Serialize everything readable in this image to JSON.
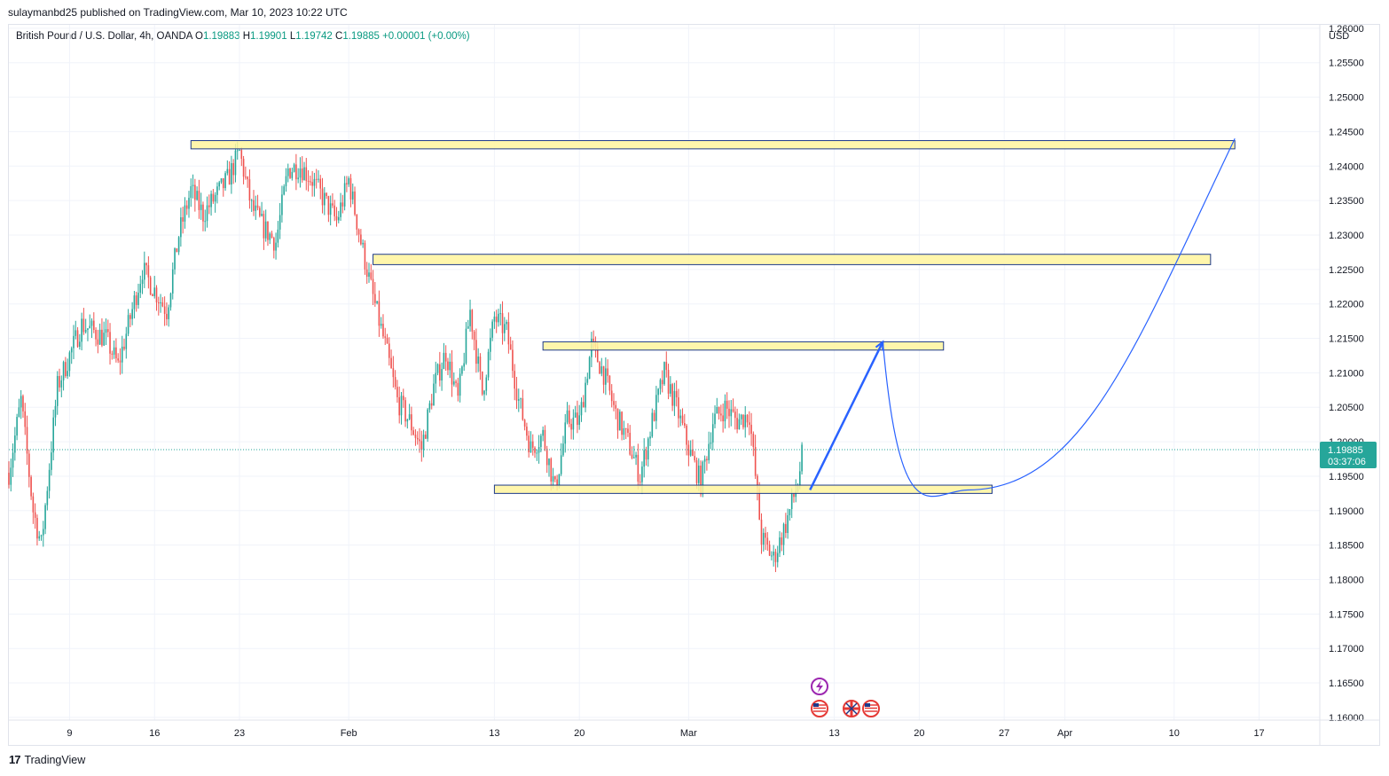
{
  "header": {
    "published": "sulaymanbd25 published on TradingView.com, Mar 10, 2023 10:22 UTC"
  },
  "legend": {
    "symbol": "British Pound / U.S. Dollar, 4h, OANDA",
    "o_label": "O",
    "o": "1.19883",
    "h_label": "H",
    "h": "1.19901",
    "l_label": "L",
    "l": "1.19742",
    "c_label": "C",
    "c": "1.19885",
    "change": "+0.00001 (+0.00%)"
  },
  "footer": {
    "brand": "TradingView",
    "logo": "17"
  },
  "colors": {
    "up": "#26a69a",
    "down": "#ef5350",
    "zone_fill": "#fff59d",
    "zone_border": "#1e3a8a",
    "projection": "#2962ff",
    "price_label": "#26a69a",
    "grid": "#f0f3fa"
  },
  "icons": [
    "lightning-event-icon",
    "us-flag-icon",
    "uk-flag-icon",
    "us-flag-icon"
  ],
  "chart_data": {
    "type": "candlestick",
    "currency_label": "USD",
    "ylim": [
      1.1596,
      1.2605
    ],
    "y_ticks": [
      "1.26000",
      "1.25500",
      "1.25000",
      "1.24500",
      "1.24000",
      "1.23500",
      "1.23000",
      "1.22500",
      "1.22000",
      "1.21500",
      "1.21000",
      "1.20500",
      "1.20000",
      "1.19500",
      "1.19000",
      "1.18500",
      "1.18000",
      "1.17500",
      "1.17000",
      "1.16500",
      "1.16000"
    ],
    "x_ticks": [
      {
        "label": "9",
        "date": "2023-01-09"
      },
      {
        "label": "16",
        "date": "2023-01-16"
      },
      {
        "label": "23",
        "date": "2023-01-23"
      },
      {
        "label": "Feb",
        "date": "2023-02-01"
      },
      {
        "label": "13",
        "date": "2023-02-13"
      },
      {
        "label": "20",
        "date": "2023-02-20"
      },
      {
        "label": "Mar",
        "date": "2023-03-01"
      },
      {
        "label": "13",
        "date": "2023-03-13"
      },
      {
        "label": "20",
        "date": "2023-03-20"
      },
      {
        "label": "27",
        "date": "2023-03-27"
      },
      {
        "label": "Apr",
        "date": "2023-04-01"
      },
      {
        "label": "10",
        "date": "2023-04-10"
      },
      {
        "label": "17",
        "date": "2023-04-17"
      }
    ],
    "x_range": [
      "2023-01-04",
      "2023-04-22"
    ],
    "close_path": [
      {
        "date": "2023-01-04",
        "close": 1.1955
      },
      {
        "date": "2023-01-05",
        "close": 1.206
      },
      {
        "date": "2023-01-06",
        "close": 1.19
      },
      {
        "date": "2023-01-06T16:00",
        "close": 1.185
      },
      {
        "date": "2023-01-08",
        "close": 1.208
      },
      {
        "date": "2023-01-10",
        "close": 1.217
      },
      {
        "date": "2023-01-12",
        "close": 1.215
      },
      {
        "date": "2023-01-13",
        "close": 1.211
      },
      {
        "date": "2023-01-15",
        "close": 1.225
      },
      {
        "date": "2023-01-17",
        "close": 1.219
      },
      {
        "date": "2023-01-18",
        "close": 1.23
      },
      {
        "date": "2023-01-19",
        "close": 1.2365
      },
      {
        "date": "2023-01-20",
        "close": 1.233
      },
      {
        "date": "2023-01-22",
        "close": 1.238
      },
      {
        "date": "2023-01-23",
        "close": 1.242
      },
      {
        "date": "2023-01-24",
        "close": 1.234
      },
      {
        "date": "2023-01-25",
        "close": 1.231
      },
      {
        "date": "2023-01-26",
        "close": 1.229
      },
      {
        "date": "2023-01-27",
        "close": 1.2395
      },
      {
        "date": "2023-01-28",
        "close": 1.24
      },
      {
        "date": "2023-01-29",
        "close": 1.238
      },
      {
        "date": "2023-01-30",
        "close": 1.235
      },
      {
        "date": "2023-01-31",
        "close": 1.232
      },
      {
        "date": "2023-02-01",
        "close": 1.238
      },
      {
        "date": "2023-02-02",
        "close": 1.229
      },
      {
        "date": "2023-02-03",
        "close": 1.221
      },
      {
        "date": "2023-02-04",
        "close": 1.214
      },
      {
        "date": "2023-02-05",
        "close": 1.206
      },
      {
        "date": "2023-02-06",
        "close": 1.203
      },
      {
        "date": "2023-02-07",
        "close": 1.199
      },
      {
        "date": "2023-02-08",
        "close": 1.208
      },
      {
        "date": "2023-02-09",
        "close": 1.213
      },
      {
        "date": "2023-02-10",
        "close": 1.206
      },
      {
        "date": "2023-02-11",
        "close": 1.219
      },
      {
        "date": "2023-02-12",
        "close": 1.207
      },
      {
        "date": "2023-02-13",
        "close": 1.218
      },
      {
        "date": "2023-02-14",
        "close": 1.216
      },
      {
        "date": "2023-02-15",
        "close": 1.206
      },
      {
        "date": "2023-02-16",
        "close": 1.199
      },
      {
        "date": "2023-02-17",
        "close": 1.201
      },
      {
        "date": "2023-02-18",
        "close": 1.193
      },
      {
        "date": "2023-02-19",
        "close": 1.203
      },
      {
        "date": "2023-02-20",
        "close": 1.203
      },
      {
        "date": "2023-02-21",
        "close": 1.214
      },
      {
        "date": "2023-02-22",
        "close": 1.21
      },
      {
        "date": "2023-02-23",
        "close": 1.204
      },
      {
        "date": "2023-02-24",
        "close": 1.2
      },
      {
        "date": "2023-02-25",
        "close": 1.195
      },
      {
        "date": "2023-02-26",
        "close": 1.203
      },
      {
        "date": "2023-02-27",
        "close": 1.21
      },
      {
        "date": "2023-02-28",
        "close": 1.205
      },
      {
        "date": "2023-03-01",
        "close": 1.199
      },
      {
        "date": "2023-03-02",
        "close": 1.194
      },
      {
        "date": "2023-03-03",
        "close": 1.203
      },
      {
        "date": "2023-03-04",
        "close": 1.205
      },
      {
        "date": "2023-03-05",
        "close": 1.203
      },
      {
        "date": "2023-03-06",
        "close": 1.204
      },
      {
        "date": "2023-03-07",
        "close": 1.186
      },
      {
        "date": "2023-03-08",
        "close": 1.183
      },
      {
        "date": "2023-03-09",
        "close": 1.188
      },
      {
        "date": "2023-03-10",
        "close": 1.194
      },
      {
        "date": "2023-03-10T10:00",
        "close": 1.19885
      }
    ],
    "current_price": "1.19885",
    "countdown": "03:37:06",
    "zones": [
      {
        "from": "2023-01-19",
        "to": "2023-04-15",
        "low": 1.2425,
        "high": 1.2437
      },
      {
        "from": "2023-02-03",
        "to": "2023-04-13",
        "low": 1.2257,
        "high": 1.2272
      },
      {
        "from": "2023-02-17",
        "to": "2023-03-22",
        "low": 1.2133,
        "high": 1.2145
      },
      {
        "from": "2023-02-13",
        "to": "2023-03-26",
        "low": 1.1925,
        "high": 1.1937
      }
    ],
    "projection": [
      {
        "date": "2023-03-11",
        "price": 1.193
      },
      {
        "date": "2023-03-17",
        "price": 1.2145
      },
      {
        "date": "2023-03-24",
        "price": 1.193
      },
      {
        "date": "2023-04-15",
        "price": 1.244
      }
    ]
  }
}
